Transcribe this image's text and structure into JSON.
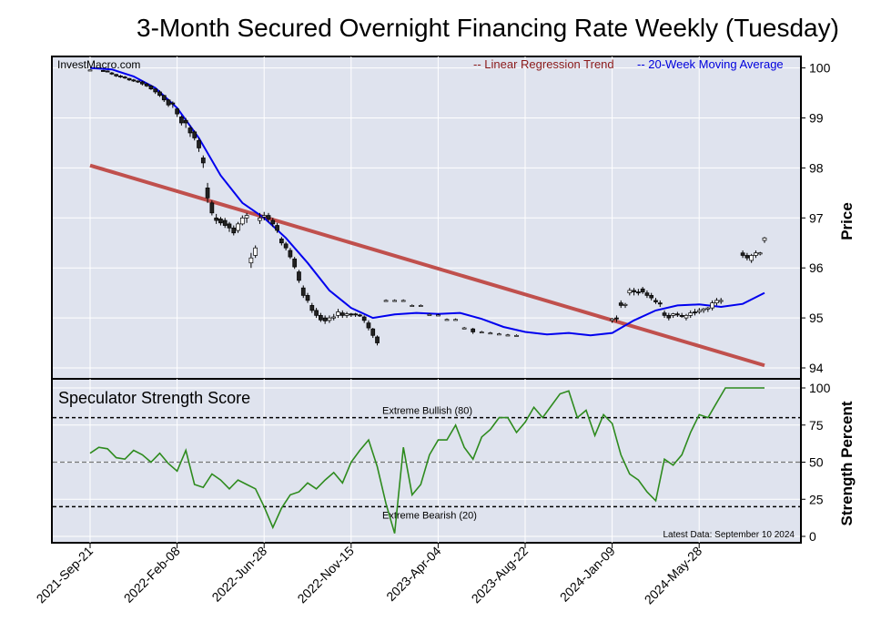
{
  "title": "3-Month Secured Overnight Financing Rate Weekly (Tuesday)",
  "watermark": "InvestMacro.com",
  "colors": {
    "panel_bg": "#dfe3ee",
    "trend": "#c0504d",
    "ma": "#0000ee",
    "score": "#2e8b1e",
    "legend_trend_text": "#8b1a1a",
    "legend_ma_text": "#0000dd"
  },
  "chart_data": [
    {
      "type": "candlestick",
      "title": "3-Month Secured Overnight Financing Rate Weekly (Tuesday)",
      "ylabel": "Price",
      "ylim": [
        93.8,
        100.2
      ],
      "yticks": [
        94,
        95,
        96,
        97,
        98,
        99,
        100
      ],
      "legend": {
        "placement": "top-right",
        "entries": [
          "-- Linear Regression Trend",
          "-- 20-Week Moving Average"
        ]
      },
      "x_dates": [
        "2021-Sep-21",
        "2022-Feb-08",
        "2022-Jun-28",
        "2022-Nov-15",
        "2023-Apr-04",
        "2023-Aug-22",
        "2024-Jan-09",
        "2024-May-28"
      ],
      "x_range_weeks": [
        0,
        155
      ],
      "trend": {
        "name": "Linear Regression Trend",
        "x": [
          0,
          155
        ],
        "y": [
          98.05,
          94.05
        ]
      },
      "candles": [
        [
          0,
          99.96,
          99.97,
          99.95,
          99.96
        ],
        [
          3,
          99.95,
          99.96,
          99.93,
          99.94
        ],
        [
          4,
          99.94,
          99.95,
          99.92,
          99.93
        ],
        [
          5,
          99.9,
          99.92,
          99.86,
          99.88
        ],
        [
          6,
          99.87,
          99.88,
          99.82,
          99.84
        ],
        [
          7,
          99.84,
          99.86,
          99.8,
          99.82
        ],
        [
          8,
          99.82,
          99.84,
          99.78,
          99.8
        ],
        [
          9,
          99.79,
          99.8,
          99.74,
          99.76
        ],
        [
          10,
          99.76,
          99.78,
          99.72,
          99.74
        ],
        [
          11,
          99.74,
          99.75,
          99.7,
          99.72
        ],
        [
          12,
          99.72,
          99.74,
          99.65,
          99.68
        ],
        [
          13,
          99.68,
          99.7,
          99.62,
          99.64
        ],
        [
          14,
          99.64,
          99.66,
          99.56,
          99.58
        ],
        [
          15,
          99.58,
          99.59,
          99.48,
          99.52
        ],
        [
          16,
          99.52,
          99.55,
          99.42,
          99.45
        ],
        [
          17,
          99.45,
          99.46,
          99.32,
          99.36
        ],
        [
          18,
          99.36,
          99.38,
          99.22,
          99.26
        ],
        [
          19,
          99.3,
          99.33,
          99.2,
          99.28
        ],
        [
          20,
          99.18,
          99.2,
          99.02,
          99.08
        ],
        [
          21,
          99.02,
          99.05,
          98.85,
          98.9
        ],
        [
          22,
          98.95,
          99.0,
          98.8,
          98.9
        ],
        [
          23,
          98.8,
          98.85,
          98.62,
          98.7
        ],
        [
          24,
          98.72,
          98.75,
          98.55,
          98.6
        ],
        [
          25,
          98.55,
          98.6,
          98.32,
          98.4
        ],
        [
          26,
          98.2,
          98.25,
          98.0,
          98.1
        ],
        [
          27,
          97.6,
          97.7,
          97.3,
          97.4
        ],
        [
          28,
          97.3,
          97.35,
          97.05,
          97.1
        ],
        [
          29,
          97.0,
          97.08,
          96.88,
          96.95
        ],
        [
          30,
          96.98,
          97.02,
          96.85,
          96.9
        ],
        [
          31,
          96.95,
          97.0,
          96.8,
          96.85
        ],
        [
          32,
          96.88,
          96.92,
          96.72,
          96.8
        ],
        [
          33,
          96.8,
          96.85,
          96.65,
          96.7
        ],
        [
          34,
          96.75,
          96.92,
          96.7,
          96.88
        ],
        [
          35,
          96.88,
          97.05,
          96.85,
          97.0
        ],
        [
          36,
          97.0,
          97.1,
          96.9,
          97.05
        ],
        [
          37,
          96.1,
          96.3,
          96.0,
          96.2
        ],
        [
          38,
          96.25,
          96.45,
          96.2,
          96.4
        ],
        [
          39,
          96.95,
          97.1,
          96.88,
          97.0
        ],
        [
          40,
          97.02,
          97.12,
          96.95,
          97.05
        ],
        [
          41,
          97.05,
          97.1,
          96.92,
          96.98
        ],
        [
          42,
          96.95,
          97.0,
          96.82,
          96.88
        ],
        [
          43,
          96.85,
          96.9,
          96.7,
          96.75
        ],
        [
          44,
          96.58,
          96.62,
          96.45,
          96.5
        ],
        [
          45,
          96.48,
          96.52,
          96.35,
          96.4
        ],
        [
          46,
          96.35,
          96.4,
          96.18,
          96.22
        ],
        [
          47,
          96.18,
          96.22,
          95.98,
          96.02
        ],
        [
          48,
          95.92,
          95.96,
          95.7,
          95.75
        ],
        [
          49,
          95.6,
          95.65,
          95.4,
          95.45
        ],
        [
          50,
          95.45,
          95.5,
          95.3,
          95.35
        ],
        [
          51,
          95.25,
          95.3,
          95.1,
          95.15
        ],
        [
          52,
          95.15,
          95.2,
          95.0,
          95.05
        ],
        [
          53,
          95.05,
          95.1,
          94.92,
          94.96
        ],
        [
          54,
          95.0,
          95.05,
          94.88,
          94.94
        ],
        [
          55,
          94.95,
          95.05,
          94.9,
          95.0
        ],
        [
          56,
          95.0,
          95.08,
          94.95,
          95.02
        ],
        [
          57,
          95.05,
          95.18,
          95.0,
          95.12
        ],
        [
          58,
          95.1,
          95.15,
          95.0,
          95.05
        ],
        [
          59,
          95.05,
          95.12,
          95.0,
          95.08
        ],
        [
          60,
          95.08,
          95.1,
          95.02,
          95.06
        ],
        [
          61,
          95.08,
          95.1,
          95.02,
          95.06
        ],
        [
          62,
          95.06,
          95.08,
          95.02,
          95.05
        ],
        [
          63,
          95.02,
          95.05,
          94.9,
          94.95
        ],
        [
          64,
          94.9,
          94.95,
          94.75,
          94.8
        ],
        [
          65,
          94.78,
          94.8,
          94.6,
          94.65
        ],
        [
          66,
          94.62,
          94.65,
          94.45,
          94.5
        ],
        [
          68,
          95.35,
          95.37,
          95.33,
          95.35
        ],
        [
          70,
          95.35,
          95.37,
          95.33,
          95.35
        ],
        [
          72,
          95.35,
          95.37,
          95.33,
          95.35
        ],
        [
          74,
          95.25,
          95.27,
          95.23,
          95.25
        ],
        [
          76,
          95.25,
          95.27,
          95.23,
          95.25
        ],
        [
          78,
          95.07,
          95.09,
          95.05,
          95.07
        ],
        [
          80,
          95.06,
          95.08,
          95.04,
          95.06
        ],
        [
          82,
          94.97,
          94.99,
          94.95,
          94.97
        ],
        [
          84,
          94.97,
          94.99,
          94.95,
          94.97
        ],
        [
          86,
          94.8,
          94.82,
          94.78,
          94.8
        ],
        [
          88,
          94.78,
          94.8,
          94.68,
          94.72
        ],
        [
          90,
          94.72,
          94.74,
          94.7,
          94.72
        ],
        [
          92,
          94.7,
          94.72,
          94.68,
          94.7
        ],
        [
          94,
          94.68,
          94.7,
          94.66,
          94.68
        ],
        [
          96,
          94.66,
          94.68,
          94.64,
          94.66
        ],
        [
          98,
          94.65,
          94.67,
          94.63,
          94.65
        ],
        [
          120,
          94.95,
          95.0,
          94.9,
          94.98
        ],
        [
          121,
          95.0,
          95.05,
          94.92,
          94.98
        ],
        [
          122,
          95.3,
          95.35,
          95.2,
          95.25
        ],
        [
          123,
          95.25,
          95.3,
          95.2,
          95.27
        ],
        [
          124,
          95.5,
          95.6,
          95.45,
          95.55
        ],
        [
          125,
          95.55,
          95.6,
          95.45,
          95.52
        ],
        [
          126,
          95.52,
          95.58,
          95.45,
          95.5
        ],
        [
          127,
          95.58,
          95.62,
          95.48,
          95.52
        ],
        [
          128,
          95.5,
          95.55,
          95.4,
          95.45
        ],
        [
          129,
          95.45,
          95.5,
          95.35,
          95.4
        ],
        [
          130,
          95.35,
          95.4,
          95.28,
          95.32
        ],
        [
          131,
          95.3,
          95.35,
          95.22,
          95.28
        ],
        [
          132,
          95.1,
          95.15,
          95.0,
          95.05
        ],
        [
          133,
          95.05,
          95.1,
          94.95,
          95.0
        ],
        [
          134,
          95.05,
          95.1,
          95.0,
          95.08
        ],
        [
          135,
          95.08,
          95.12,
          95.02,
          95.06
        ],
        [
          136,
          95.05,
          95.1,
          95.0,
          95.03
        ],
        [
          137,
          95.0,
          95.08,
          94.95,
          95.05
        ],
        [
          138,
          95.05,
          95.15,
          95.0,
          95.1
        ],
        [
          139,
          95.12,
          95.18,
          95.05,
          95.1
        ],
        [
          140,
          95.12,
          95.2,
          95.08,
          95.15
        ],
        [
          141,
          95.15,
          95.2,
          95.1,
          95.18
        ],
        [
          142,
          95.18,
          95.22,
          95.12,
          95.2
        ],
        [
          143,
          95.2,
          95.35,
          95.15,
          95.3
        ],
        [
          144,
          95.3,
          95.4,
          95.25,
          95.35
        ],
        [
          145,
          95.33,
          95.4,
          95.28,
          95.35
        ],
        [
          150,
          96.3,
          96.35,
          96.2,
          96.25
        ],
        [
          151,
          96.25,
          96.3,
          96.15,
          96.2
        ],
        [
          152,
          96.15,
          96.28,
          96.1,
          96.25
        ],
        [
          153,
          96.25,
          96.35,
          96.2,
          96.3
        ],
        [
          154,
          96.28,
          96.32,
          96.25,
          96.3
        ],
        [
          155,
          96.55,
          96.62,
          96.5,
          96.6
        ]
      ],
      "moving_average": {
        "name": "20-Week Moving Average",
        "x": [
          0,
          5,
          10,
          15,
          20,
          25,
          30,
          35,
          40,
          45,
          50,
          55,
          60,
          65,
          70,
          75,
          80,
          85,
          90,
          95,
          100,
          105,
          110,
          115,
          120,
          125,
          130,
          135,
          140,
          145,
          150,
          155
        ],
        "y": [
          100.0,
          99.97,
          99.83,
          99.6,
          99.2,
          98.6,
          97.85,
          97.3,
          97.0,
          96.6,
          96.1,
          95.55,
          95.2,
          95.0,
          95.07,
          95.1,
          95.08,
          95.1,
          94.98,
          94.82,
          94.72,
          94.67,
          94.7,
          94.65,
          94.7,
          94.95,
          95.15,
          95.25,
          95.27,
          95.22,
          95.28,
          95.5
        ]
      }
    },
    {
      "type": "line",
      "title": "Speculator Strength Score",
      "ylabel": "Strength Percent",
      "ylim": [
        -5,
        106
      ],
      "yticks": [
        0,
        25,
        50,
        75,
        100
      ],
      "grid": true,
      "reference_lines": [
        {
          "y": 80,
          "label": "Extreme Bullish (80)"
        },
        {
          "y": 50,
          "label": ""
        },
        {
          "y": 20,
          "label": "Extreme Bearish (20)"
        }
      ],
      "note": "Latest Data: September 10 2024",
      "series": [
        {
          "name": "",
          "x": [
            0,
            2,
            4,
            6,
            8,
            10,
            12,
            14,
            16,
            18,
            20,
            22,
            24,
            26,
            28,
            30,
            32,
            34,
            36,
            38,
            40,
            42,
            44,
            46,
            48,
            50,
            52,
            54,
            56,
            58,
            60,
            62,
            64,
            66,
            68,
            70,
            72,
            74,
            76,
            78,
            80,
            82,
            84,
            86,
            88,
            90,
            92,
            94,
            96,
            98,
            100,
            102,
            104,
            106,
            108,
            110,
            112,
            114,
            116,
            118,
            120,
            122,
            124,
            126,
            128,
            130,
            132,
            134,
            136,
            138,
            140,
            142,
            144,
            146,
            148,
            150,
            152,
            154,
            155
          ],
          "y": [
            56,
            60,
            59,
            53,
            52,
            58,
            55,
            50,
            56,
            49,
            44,
            58,
            35,
            33,
            42,
            38,
            32,
            38,
            35,
            32,
            20,
            6,
            19,
            28,
            30,
            36,
            32,
            38,
            43,
            36,
            50,
            58,
            65,
            47,
            22,
            2,
            60,
            28,
            35,
            55,
            65,
            65,
            75,
            60,
            52,
            67,
            72,
            80,
            80,
            70,
            77,
            87,
            80,
            88,
            96,
            98,
            80,
            85,
            68,
            82,
            76,
            55,
            42,
            38,
            30,
            24,
            52,
            48,
            55,
            70,
            82,
            80,
            90,
            100,
            100,
            100,
            100,
            100,
            100
          ]
        }
      ]
    }
  ]
}
